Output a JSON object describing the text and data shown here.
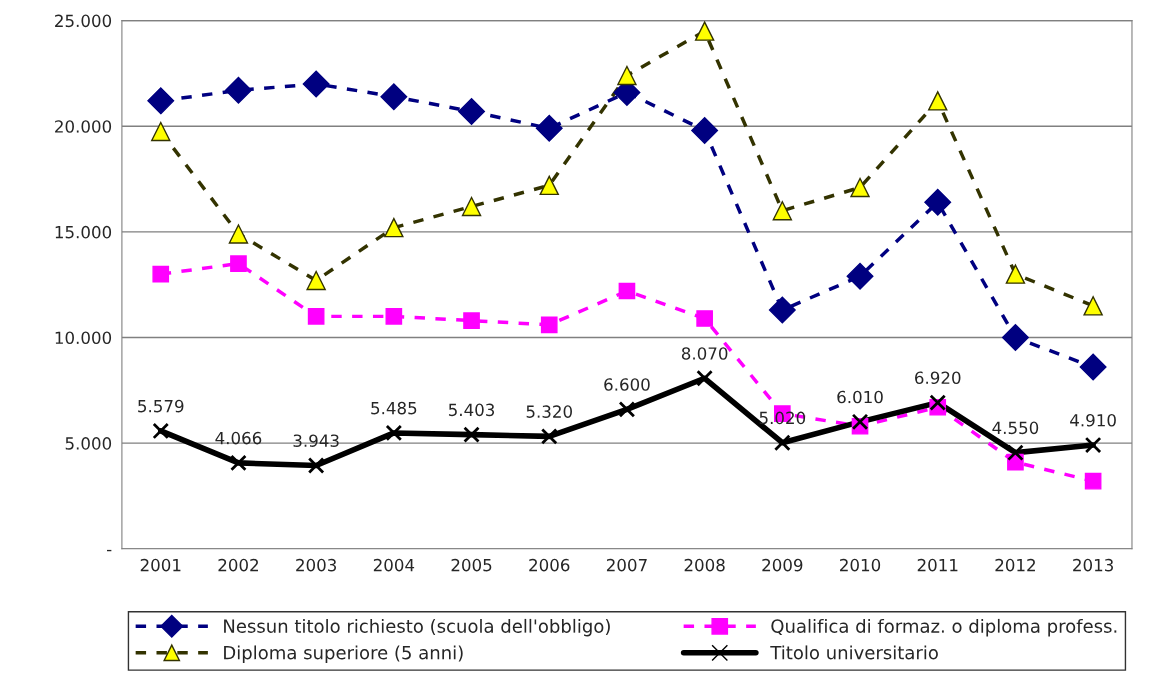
{
  "chart_data": {
    "type": "line",
    "categories": [
      "2001",
      "2002",
      "2003",
      "2004",
      "2005",
      "2006",
      "2007",
      "2008",
      "2009",
      "2010",
      "2011",
      "2012",
      "2013"
    ],
    "series": [
      {
        "name": "Nessun titolo richiesto (scuola dell'obbligo)",
        "color": "#000080",
        "marker": "diamond",
        "line_style": "dashed",
        "values": [
          21200,
          21700,
          22000,
          21400,
          20700,
          19900,
          21600,
          19800,
          11300,
          12900,
          16400,
          10000,
          8600
        ]
      },
      {
        "name": "Qualifica di formaz. o diploma profess.",
        "color": "#ff00ff",
        "marker": "square",
        "line_style": "dashed",
        "values": [
          13000,
          13500,
          11000,
          11000,
          10800,
          10600,
          12200,
          10900,
          6400,
          5800,
          6700,
          4100,
          3200
        ]
      },
      {
        "name": "Diploma superiore (5 anni)",
        "color": "#333300",
        "colors": [
          "#ffff00",
          "#ffff00",
          "#ffff00",
          "#ffff00",
          "#ffff00",
          "#ffff00",
          "#ffff00",
          "#ffff00",
          "#ffff00",
          "#ffff00",
          "#ffff00",
          "#ffff00",
          "#ffff00"
        ],
        "marker": "triangle",
        "line_style": "dashed",
        "values": [
          19750,
          14900,
          12700,
          15200,
          16200,
          17200,
          22400,
          24500,
          16000,
          17100,
          21200,
          13000,
          11500
        ]
      },
      {
        "name": "Titolo universitario",
        "color": "#000000",
        "marker": "cross",
        "line_style": "solid",
        "values": [
          5579,
          4066,
          3943,
          5485,
          5403,
          5320,
          6600,
          8070,
          5020,
          6010,
          6920,
          4550,
          4910
        ],
        "value_labels": [
          "5.579",
          "4.066",
          "3.943",
          "5.485",
          "5.403",
          "5.320",
          "6.600",
          "8.070",
          "5.020",
          "6.010",
          "6.920",
          "4.550",
          "4.910"
        ]
      }
    ],
    "ylim": [
      0,
      25000
    ],
    "yticks": [
      {
        "value": 0,
        "label": "-"
      },
      {
        "value": 5000,
        "label": "5.000"
      },
      {
        "value": 10000,
        "label": "10.000"
      },
      {
        "value": 15000,
        "label": "15.000"
      },
      {
        "value": 20000,
        "label": "20.000"
      },
      {
        "value": 25000,
        "label": "25.000"
      }
    ],
    "grid": "y",
    "legend": "bottom"
  }
}
